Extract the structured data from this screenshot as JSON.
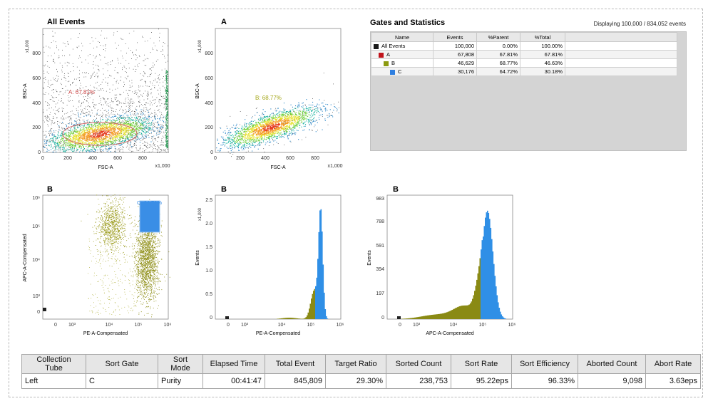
{
  "plots": {
    "all_events": {
      "title": "All Events",
      "xlabel": "FSC-A",
      "ylabel": "BSC-A",
      "x_mult": "x1,000",
      "y_mult": "x1,000",
      "gate_label": "A: 67.81%"
    },
    "a": {
      "title": "A",
      "xlabel": "FSC-A",
      "ylabel": "BSC-A",
      "x_mult": "x1,000",
      "y_mult": "x1,000",
      "gate_label": "B: 68.77%"
    },
    "b_scatter": {
      "title": "B",
      "xlabel": "PE-A-Compensated",
      "ylabel": "APC-A-Compensated",
      "gate_label": "C: 64.72%"
    },
    "b_pe_hist": {
      "title": "B",
      "xlabel": "PE-A-Compensated",
      "ylabel": "Events",
      "y_mult": "x1,000"
    },
    "b_apc_hist": {
      "title": "B",
      "xlabel": "APC-A-Compensated",
      "ylabel": "Events"
    }
  },
  "chart_data": [
    {
      "type": "scatter",
      "title": "All Events",
      "xlabel": "FSC-A",
      "ylabel": "BSC-A",
      "x_ticks": [
        "0",
        "200",
        "400",
        "600",
        "800",
        "x1,000"
      ],
      "y_ticks": [
        "0",
        "200",
        "400",
        "600",
        "800",
        "x1,000"
      ],
      "xlim": [
        0,
        1000
      ],
      "ylim": [
        0,
        1000
      ],
      "gate": "A: 67.81%"
    },
    {
      "type": "scatter",
      "title": "A",
      "xlabel": "FSC-A",
      "ylabel": "BSC-A",
      "x_ticks": [
        "0",
        "200",
        "400",
        "600",
        "800",
        "x1,000"
      ],
      "y_ticks": [
        "0",
        "200",
        "400",
        "600",
        "800",
        "x1,000"
      ],
      "xlim": [
        0,
        1000
      ],
      "ylim": [
        0,
        1000
      ],
      "gate": "B: 68.77%"
    },
    {
      "type": "scatter",
      "title": "B",
      "xlabel": "PE-A-Compensated",
      "ylabel": "APC-A-Compensated",
      "x_ticks": [
        "0",
        "10³",
        "10⁴",
        "10⁵",
        "10⁶"
      ],
      "y_ticks": [
        "0",
        "10³",
        "10⁴",
        "10⁵",
        "10⁶"
      ],
      "gate": "C: 64.72%"
    },
    {
      "type": "bar",
      "title": "B",
      "xlabel": "PE-A-Compensated",
      "ylabel": "Events",
      "x_ticks": [
        "0",
        "10³",
        "10⁴",
        "10⁵",
        "10⁶"
      ],
      "y_ticks": [
        "0",
        "0.5",
        "1.0",
        "1.5",
        "2.0",
        "2.5"
      ],
      "ylim": [
        0,
        2500
      ],
      "peak": 2250
    },
    {
      "type": "bar",
      "title": "B",
      "xlabel": "APC-A-Compensated",
      "ylabel": "Events",
      "x_ticks": [
        "0",
        "10³",
        "10⁴",
        "10⁵",
        "10⁶"
      ],
      "y_ticks": [
        "0",
        "197",
        "394",
        "591",
        "788",
        "983"
      ],
      "ylim": [
        0,
        983
      ],
      "peak": 850
    }
  ],
  "gates": {
    "title": "Gates and Statistics",
    "displaying": "Displaying 100,000 / 834,052 events",
    "columns": [
      "Name",
      "Events",
      "%Parent",
      "%Total"
    ],
    "rows": [
      {
        "name": "All Events",
        "events": "100,000",
        "parent": "0.00%",
        "total": "100.00%",
        "color": "#1a1a1a"
      },
      {
        "name": "A",
        "events": "67,808",
        "parent": "67.81%",
        "total": "67.81%",
        "color": "#c0141c"
      },
      {
        "name": "B",
        "events": "46,629",
        "parent": "68.77%",
        "total": "46.63%",
        "color": "#8c9a10"
      },
      {
        "name": "C",
        "events": "30,176",
        "parent": "64.72%",
        "total": "30.18%",
        "color": "#2f7fe0"
      }
    ]
  },
  "sort_table": {
    "columns": [
      "Collection Tube",
      "Sort Gate",
      "Sort Mode",
      "Elapsed Time",
      "Total Event",
      "Target Ratio",
      "Sorted Count",
      "Sort Rate",
      "Sort Efficiency",
      "Aborted Count",
      "Abort Rate"
    ],
    "row": [
      "Left",
      "C",
      "Purity",
      "00:41:47",
      "845,809",
      "29.30%",
      "238,753",
      "95.22eps",
      "96.33%",
      "9,098",
      "3.63eps"
    ]
  }
}
